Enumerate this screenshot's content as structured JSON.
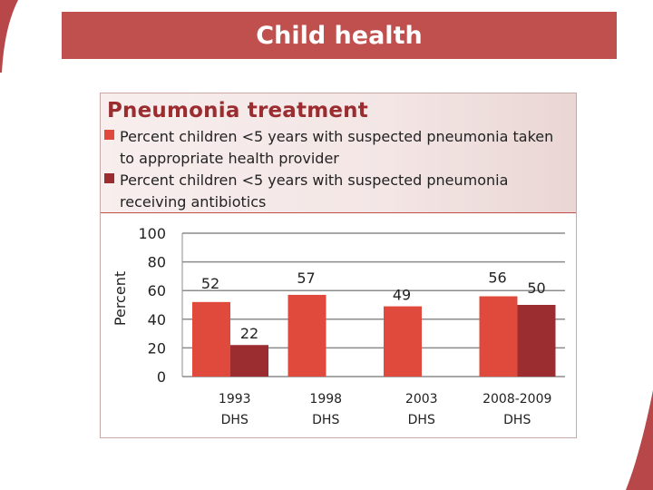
{
  "slide": {
    "title": "Child health",
    "title_bar_color": "#c0504d"
  },
  "chart_data": {
    "type": "bar",
    "title": "Pneumonia treatment",
    "ylabel": "Percent",
    "xlabel": "",
    "ylim": [
      0,
      100
    ],
    "yticks": [
      0,
      20,
      40,
      60,
      80,
      100
    ],
    "grid": true,
    "legend_position": "top",
    "categories": [
      [
        "1993",
        "DHS"
      ],
      [
        "1998",
        "DHS"
      ],
      [
        "2003",
        "DHS"
      ],
      [
        "2008-2009",
        "DHS"
      ]
    ],
    "series": [
      {
        "name": "Percent children <5 years with suspected pneumonia taken to appropriate health provider",
        "color": "#e04a3c",
        "values": [
          52,
          57,
          49,
          56
        ]
      },
      {
        "name": "Percent children <5 years with suspected pneumonia receiving antibiotics",
        "color": "#9b2d30",
        "values": [
          22,
          null,
          null,
          50
        ]
      }
    ]
  }
}
